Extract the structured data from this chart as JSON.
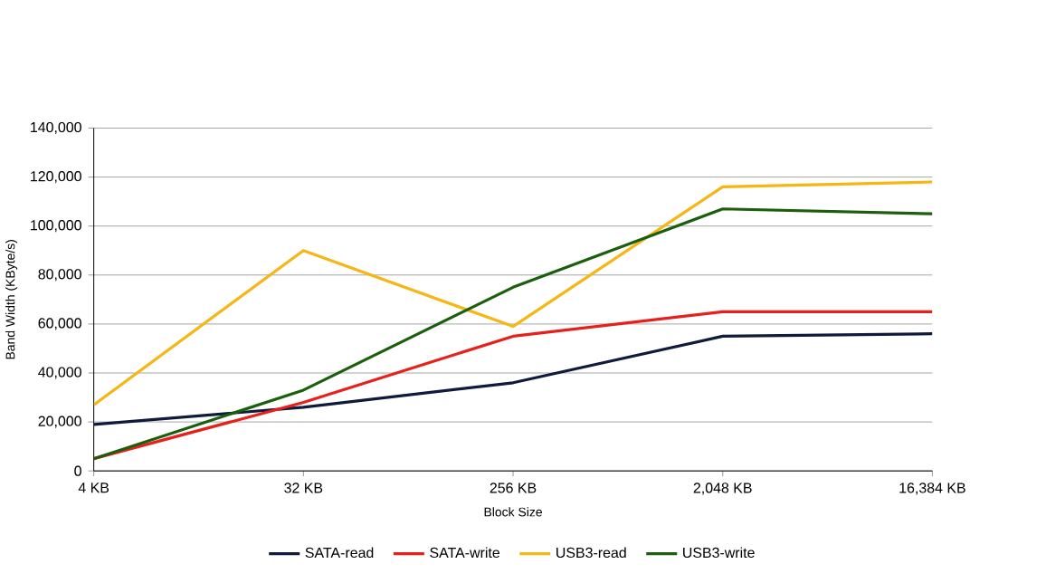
{
  "chart_data": {
    "type": "line",
    "xlabel": "Block Size",
    "ylabel": "Band Width (KByte/s)",
    "categories": [
      "4 KB",
      "32 KB",
      "256 KB",
      "2,048 KB",
      "16,384 KB"
    ],
    "series": [
      {
        "name": "SATA-read",
        "color": "#0f1a3c",
        "values": [
          19000,
          26000,
          36000,
          55000,
          56000
        ]
      },
      {
        "name": "SATA-write",
        "color": "#e8201c",
        "values": [
          5000,
          28000,
          55000,
          65000,
          65000
        ]
      },
      {
        "name": "USB3-read",
        "color": "#f5b616",
        "values": [
          27000,
          90000,
          59000,
          116000,
          118000
        ]
      },
      {
        "name": "USB3-write",
        "color": "#1b5e0c",
        "values": [
          5000,
          33000,
          75000,
          107000,
          105000
        ]
      }
    ],
    "ylim": [
      0,
      140000
    ],
    "yticks": [
      {
        "value": 0,
        "label": "0"
      },
      {
        "value": 20000,
        "label": "20,000"
      },
      {
        "value": 40000,
        "label": "40,000"
      },
      {
        "value": 60000,
        "label": "60,000"
      },
      {
        "value": 80000,
        "label": "80,000"
      },
      {
        "value": 100000,
        "label": "100,000"
      },
      {
        "value": 120000,
        "label": "120,000"
      },
      {
        "value": 140000,
        "label": "140,000"
      }
    ],
    "grid": "y",
    "legend": "bottom",
    "marker": "none",
    "line_style": "solid"
  }
}
